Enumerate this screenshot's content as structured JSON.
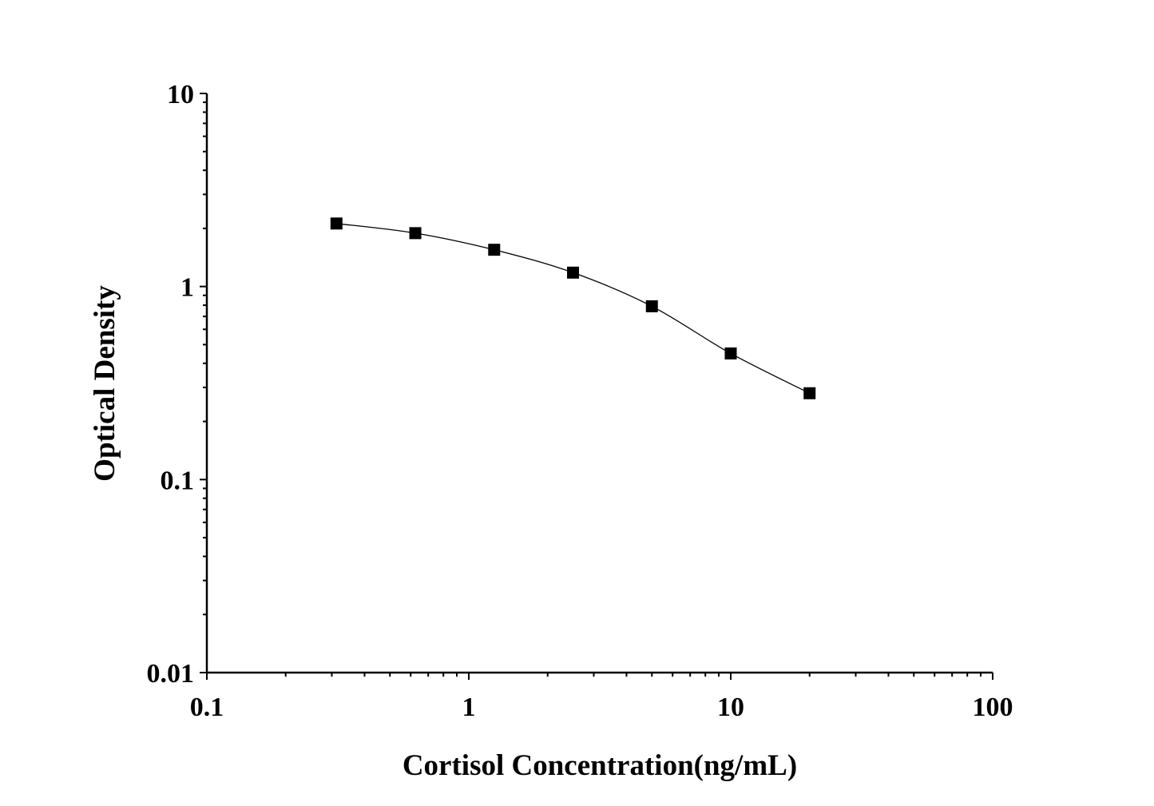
{
  "chart_data": {
    "type": "line",
    "xlabel": "Cortisol Concentration(ng/mL)",
    "ylabel": "Optical Density",
    "xscale": "log",
    "yscale": "log",
    "xlim": [
      0.1,
      100
    ],
    "ylim": [
      0.01,
      10
    ],
    "xticks": [
      "0.1",
      "1",
      "10",
      "100"
    ],
    "yticks": [
      "0.01",
      "0.1",
      "1",
      "10"
    ],
    "grid": false,
    "marker": "square",
    "color": "#000000",
    "x": [
      0.3125,
      0.625,
      1.25,
      2.5,
      5,
      10,
      20
    ],
    "y": [
      2.12,
      1.89,
      1.55,
      1.18,
      0.79,
      0.45,
      0.28
    ]
  }
}
